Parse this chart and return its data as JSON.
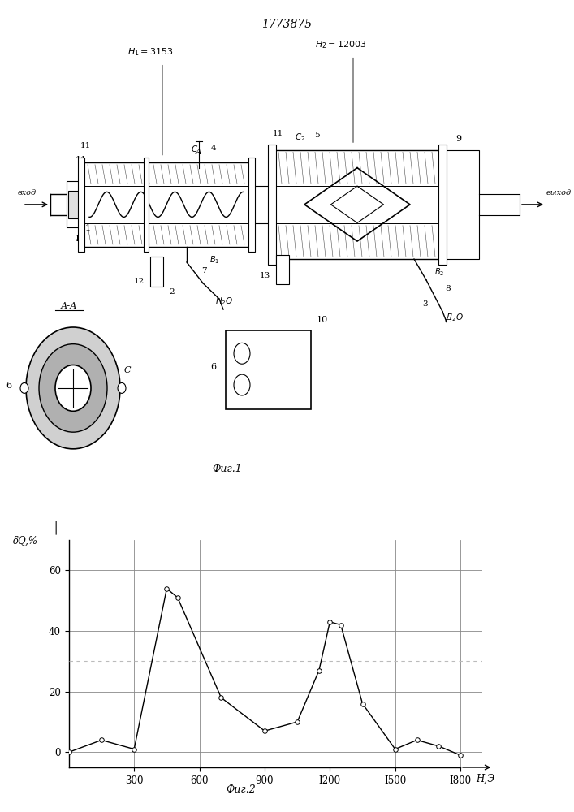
{
  "patent_number": "1773875",
  "fig1_caption": "Фиг.1",
  "fig2_caption": "Фиг.2",
  "graph": {
    "x_data": [
      0,
      150,
      300,
      450,
      500,
      700,
      900,
      1050,
      1150,
      1200,
      1250,
      1350,
      1500,
      1600,
      1700,
      1800
    ],
    "y_data": [
      0,
      4,
      1,
      54,
      51,
      18,
      7,
      10,
      27,
      43,
      42,
      16,
      1,
      4,
      2,
      -1
    ],
    "xlabel": "Н,Э",
    "ylabel": "δQ,%",
    "xtick_labels": [
      "300",
      "600",
      "900",
      "I200",
      "I500",
      "I800"
    ],
    "xticks": [
      300,
      600,
      900,
      1200,
      1500,
      1800
    ],
    "yticks": [
      0,
      20,
      40,
      60
    ],
    "xlim": [
      0,
      1900
    ],
    "ylim": [
      -5,
      70
    ],
    "grid_color": "#888888",
    "line_color": "#000000",
    "dashed_line_y": 30,
    "dashed_line_color": "#bbbbbb",
    "bg_color": "#ffffff",
    "marker": "o",
    "marker_facecolor": "#ffffff",
    "marker_edgecolor": "#000000",
    "marker_size": 4
  }
}
